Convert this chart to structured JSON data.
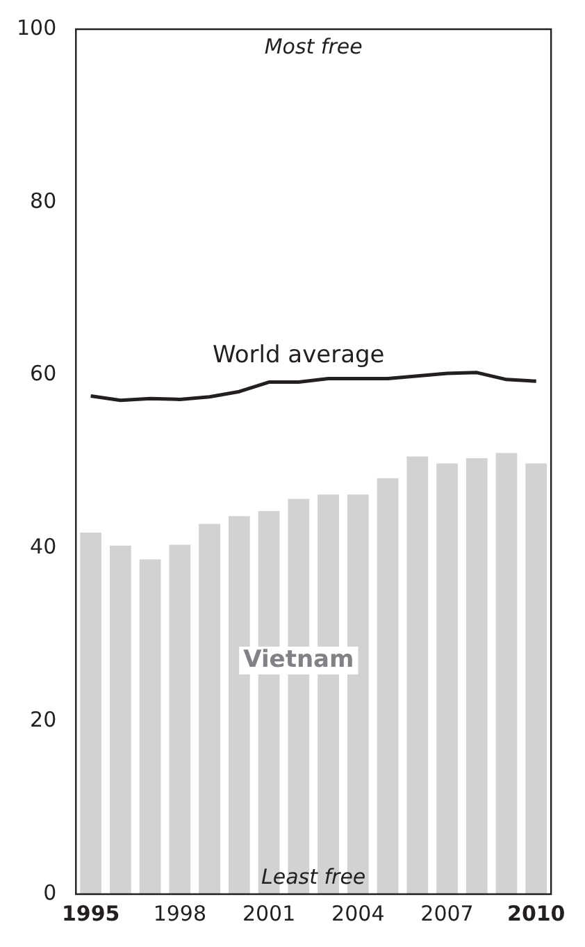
{
  "chart_data": {
    "type": "bar",
    "categories": [
      "1995",
      null,
      null,
      "1998",
      null,
      null,
      "2001",
      null,
      null,
      "2004",
      null,
      null,
      "2007",
      null,
      null,
      "2010"
    ],
    "series": [
      {
        "name": "Vietnam",
        "color": "#d1d2d4",
        "values": [
          41.8,
          40.3,
          38.7,
          40.4,
          42.8,
          43.7,
          44.3,
          45.7,
          46.2,
          46.2,
          48.1,
          50.6,
          49.8,
          50.4,
          51.0,
          49.8
        ]
      },
      {
        "name": "World average",
        "type": "line",
        "color": "#231f20",
        "values": [
          57.6,
          57.1,
          57.3,
          57.2,
          57.5,
          58.1,
          59.2,
          59.2,
          59.6,
          59.6,
          59.6,
          59.9,
          60.2,
          60.3,
          59.5,
          59.3
        ]
      }
    ],
    "ylim": [
      0,
      100
    ],
    "yticks": [
      0,
      20,
      40,
      60,
      80,
      100
    ],
    "grid": false,
    "legend": false,
    "marker": "none",
    "line_style": "solid",
    "annotations": [
      "Most free",
      "Least free"
    ]
  }
}
